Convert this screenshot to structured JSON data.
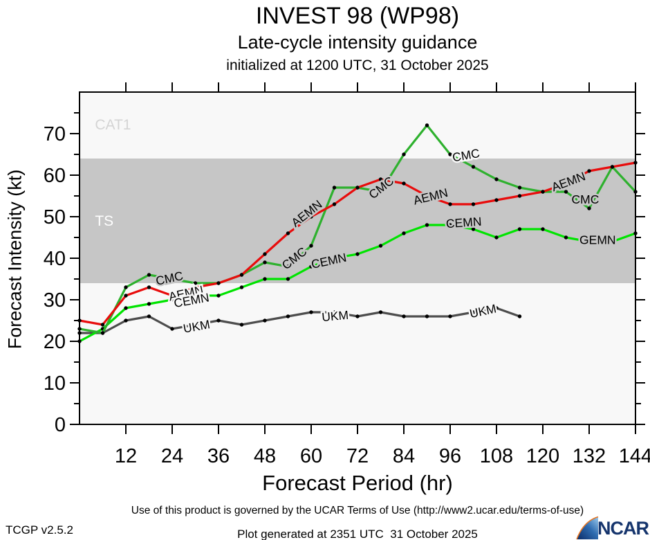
{
  "header": {
    "title": "INVEST 98 (WP98)",
    "subtitle": "Late-cycle intensity guidance",
    "init_line": "initialized at 1200 UTC, 31 October 2025"
  },
  "footer": {
    "terms": "Use of this product is governed by the UCAR Terms of Use (http://www2.ucar.edu/terms-of-use)",
    "version": "TCGP v2.5.2",
    "generated": "Plot generated at 2351 UTC  31 October 2025",
    "logo_text": "NCAR"
  },
  "chart_data": {
    "type": "line",
    "title": "INVEST 98 (WP98)",
    "xlabel": "Forecast Period (hr)",
    "ylabel": "Forecast Intensity (kt)",
    "xlim": [
      0,
      144
    ],
    "ylim": [
      0,
      80
    ],
    "xticks": [
      12,
      24,
      36,
      48,
      60,
      72,
      84,
      96,
      108,
      120,
      132,
      144
    ],
    "yticks_major": [
      0,
      10,
      20,
      30,
      40,
      50,
      60,
      70
    ],
    "yticks_minor": [
      5,
      15,
      25,
      35,
      45,
      55,
      65,
      75
    ],
    "grid": false,
    "plot_bg": "#f8f8f8",
    "bands": [
      {
        "label": "TS",
        "from": 34,
        "to": 64,
        "fill": "#c6c6c6",
        "label_color": "#ffffff",
        "label_hr": 4,
        "label_kt": 49.0,
        "label_size": 21
      },
      {
        "label": "CAT1",
        "from": 64,
        "to": 80,
        "fill": "#f8f8f8",
        "label_color": "#d4d4d4",
        "label_hr": 4,
        "label_kt": 72.2,
        "label_size": 21
      }
    ],
    "x": [
      0,
      6,
      12,
      18,
      24,
      30,
      36,
      42,
      48,
      54,
      60,
      66,
      72,
      78,
      84,
      90,
      96,
      102,
      108,
      114,
      120,
      126,
      132,
      138,
      144
    ],
    "series": [
      {
        "name": "UKM",
        "color": "#4d4d4d",
        "values": [
          22,
          22,
          25,
          26,
          23,
          24,
          25,
          24,
          25,
          26,
          27,
          27,
          26,
          27,
          26,
          26,
          26,
          27,
          28,
          26,
          null,
          null,
          null,
          null,
          null
        ]
      },
      {
        "name": "CEMN",
        "color": "#00e400",
        "values": [
          20,
          23,
          28,
          29,
          30,
          31,
          31,
          33,
          35,
          35,
          38,
          40,
          41,
          43,
          46,
          48,
          48,
          47,
          45,
          47,
          47,
          45,
          44,
          44,
          46
        ]
      },
      {
        "name": "CMC",
        "color": "#2eb12e",
        "values": [
          23,
          22,
          33,
          36,
          35,
          34,
          34,
          36,
          39,
          38,
          43,
          57,
          57,
          56,
          65,
          72,
          65,
          62,
          59,
          57,
          56,
          56,
          52,
          62,
          56
        ]
      },
      {
        "name": "AEMN",
        "color": "#e80c0c",
        "values": [
          25,
          24,
          31,
          33,
          31,
          33,
          34,
          36,
          41,
          46,
          50,
          53,
          57,
          59,
          58,
          55,
          53,
          53,
          54,
          55,
          56,
          58,
          61,
          62,
          63
        ]
      }
    ],
    "line_labels": [
      {
        "text": "CMC",
        "hr": 23.5,
        "kt": 35.2,
        "rot": -12
      },
      {
        "text": "AEMN",
        "hr": 27.8,
        "kt": 31.6,
        "rot": -12
      },
      {
        "text": "CEMN",
        "hr": 29.2,
        "kt": 29.9,
        "rot": -10
      },
      {
        "text": "UKM",
        "hr": 30.5,
        "kt": 23.6,
        "rot": -10
      },
      {
        "text": "CMC",
        "hr": 56.3,
        "kt": 40.2,
        "rot": -38
      },
      {
        "text": "AEMN",
        "hr": 59.5,
        "kt": 51.0,
        "rot": -38
      },
      {
        "text": "CEMN",
        "hr": 64.8,
        "kt": 39.4,
        "rot": -12
      },
      {
        "text": "UKM",
        "hr": 66.3,
        "kt": 26.1,
        "rot": -5
      },
      {
        "text": "CMC",
        "hr": 78.8,
        "kt": 57.2,
        "rot": -38
      },
      {
        "text": "AEMN",
        "hr": 91.2,
        "kt": 54.9,
        "rot": -14
      },
      {
        "text": "CEMN",
        "hr": 99.6,
        "kt": 48.6,
        "rot": -4
      },
      {
        "text": "CMC",
        "hr": 100.3,
        "kt": 64.8,
        "rot": -10
      },
      {
        "text": "UKM",
        "hr": 104.7,
        "kt": 27.3,
        "rot": -12
      },
      {
        "text": "AEMN",
        "hr": 127.0,
        "kt": 58.5,
        "rot": -20
      },
      {
        "text": "CMC",
        "hr": 131.0,
        "kt": 54.2,
        "rot": 0
      },
      {
        "text": "GEMN",
        "hr": 134.2,
        "kt": 44.4,
        "rot": 0
      }
    ],
    "legend_position": "inline-labels",
    "marker": {
      "shape": "circle",
      "color": "#000000",
      "radius": 2.7
    }
  }
}
